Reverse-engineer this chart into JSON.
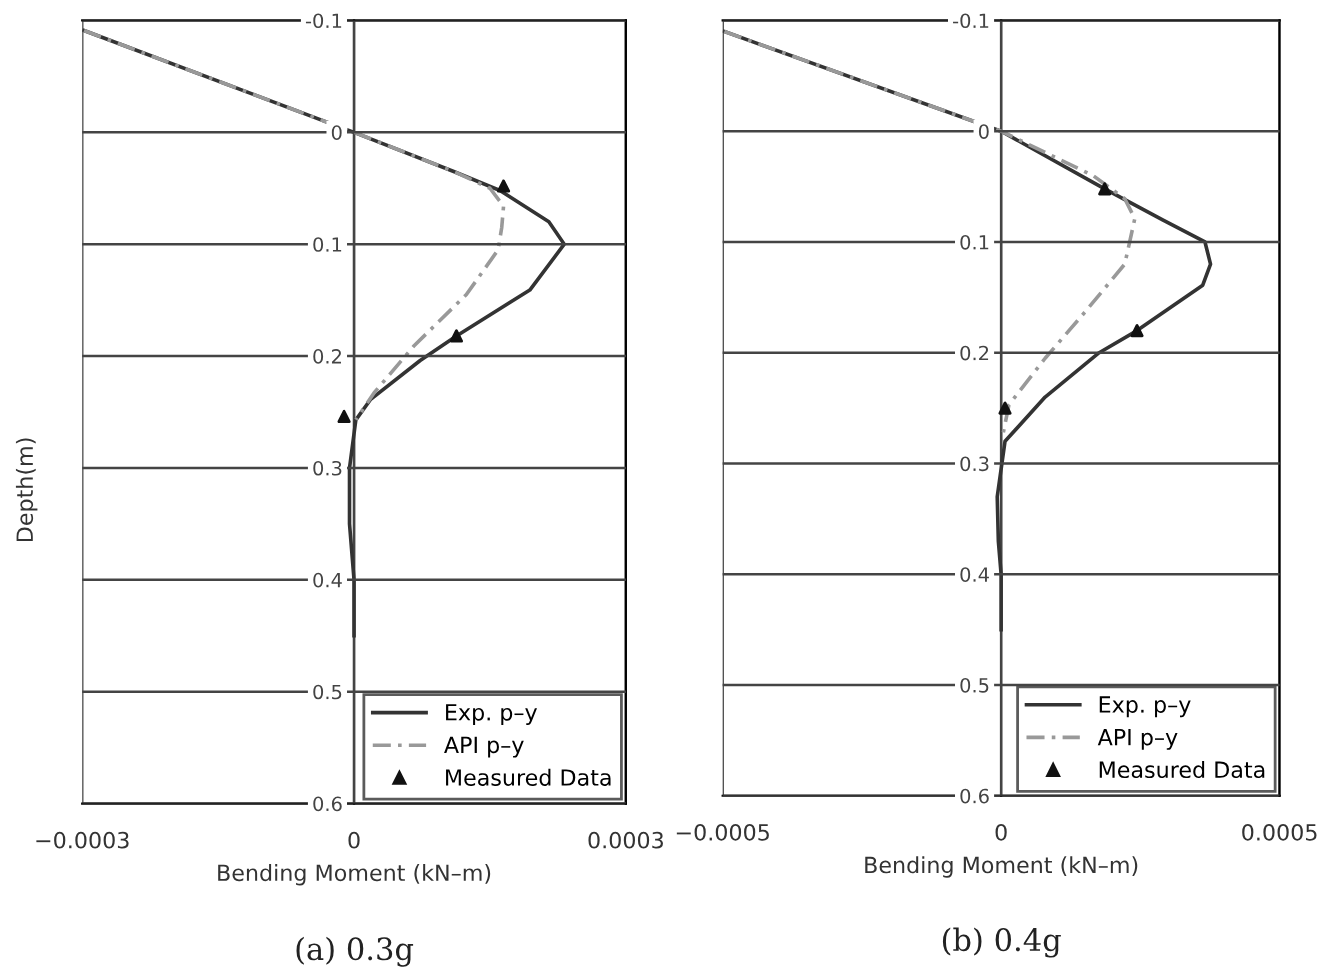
{
  "chart_data": [
    {
      "type": "line",
      "xlabel": "Bending Moment (kN–m)",
      "ylabel": "Depth(m)",
      "annotations": [
        "(a) 0.3g"
      ],
      "xlim": [
        -0.0003,
        0.0003
      ],
      "xticks": [
        {
          "value": -0.0003,
          "label": "−0.0003"
        },
        0,
        0.0003
      ],
      "ylim": [
        0.6,
        -0.1
      ],
      "yticks": [
        -0.1,
        0,
        0.1,
        0.2,
        0.3,
        0.4,
        0.5,
        0.6
      ],
      "grid": true,
      "legend": "bottom right",
      "series": [
        {
          "name": "Exp. p–y",
          "color": "#333333",
          "line_style": "solid",
          "marker": "none",
          "x": [
            -0.000298,
            0,
            0.00011,
            0.000161,
            0.000215,
            0.000232,
            0.000194,
            0.000113,
            7.3e-05,
            1.8e-05,
            2e-06,
            -5e-06,
            -5e-06,
            0,
            0
          ],
          "values": [
            -0.091,
            0,
            0.035,
            0.052,
            0.08,
            0.1,
            0.141,
            0.182,
            0.204,
            0.239,
            0.257,
            0.3,
            0.35,
            0.4,
            0.45
          ]
        },
        {
          "name": "API p–y",
          "color": "#999999",
          "line_style": "dashed",
          "marker": "none",
          "x": [
            -0.000298,
            0,
            0.00011,
            0.00015,
            0.000165,
            0.000163,
            0.000159,
            0.000124,
            6.6e-05,
            2.2e-05,
            2e-06
          ],
          "values": [
            -0.091,
            0,
            0.035,
            0.05,
            0.066,
            0.085,
            0.105,
            0.145,
            0.191,
            0.233,
            0.257
          ]
        },
        {
          "name": "Measured Data",
          "type": "scatter",
          "color": "#111111",
          "marker": "triangle",
          "x": [
            0.000165,
            0.000113,
            -1.1e-05
          ],
          "values": [
            0.048,
            0.182,
            0.254
          ]
        }
      ]
    },
    {
      "type": "line",
      "xlabel": "Bending Moment (kN–m)",
      "annotations": [
        "(b) 0.4g"
      ],
      "xlim": [
        -0.0005,
        0.0005
      ],
      "xticks": [
        {
          "value": -0.0005,
          "label": "−0.0005"
        },
        0,
        0.0005
      ],
      "ylim": [
        0.6,
        -0.1
      ],
      "yticks": [
        -0.1,
        0,
        0.1,
        0.2,
        0.3,
        0.4,
        0.5,
        0.6
      ],
      "grid": true,
      "legend": "bottom right",
      "series": [
        {
          "name": "Exp. p–y",
          "color": "#333333",
          "line_style": "solid",
          "marker": "none",
          "x": [
            -0.000497,
            0,
            0.000186,
            0.00029,
            0.000366,
            0.000376,
            0.000362,
            0.000244,
            0.000176,
            7.9e-05,
            7e-06,
            -7e-06,
            -5e-06,
            0,
            0
          ],
          "values": [
            -0.09,
            0,
            0.052,
            0.08,
            0.1,
            0.12,
            0.139,
            0.18,
            0.2,
            0.24,
            0.28,
            0.33,
            0.37,
            0.4,
            0.45
          ]
        },
        {
          "name": "API p–y",
          "color": "#999999",
          "line_style": "dashed",
          "marker": "none",
          "x": [
            -0.000497,
            0,
            0.000165,
            0.000222,
            0.00024,
            0.000222,
            0.000151,
            7.9e-05,
            1.4e-05,
            4e-06
          ],
          "values": [
            -0.09,
            0,
            0.04,
            0.061,
            0.079,
            0.12,
            0.163,
            0.205,
            0.247,
            0.272
          ]
        },
        {
          "name": "Measured Data",
          "type": "scatter",
          "color": "#111111",
          "marker": "triangle",
          "x": [
            0.000186,
            0.000244,
            7e-06
          ],
          "values": [
            0.052,
            0.18,
            0.25
          ]
        }
      ]
    }
  ]
}
